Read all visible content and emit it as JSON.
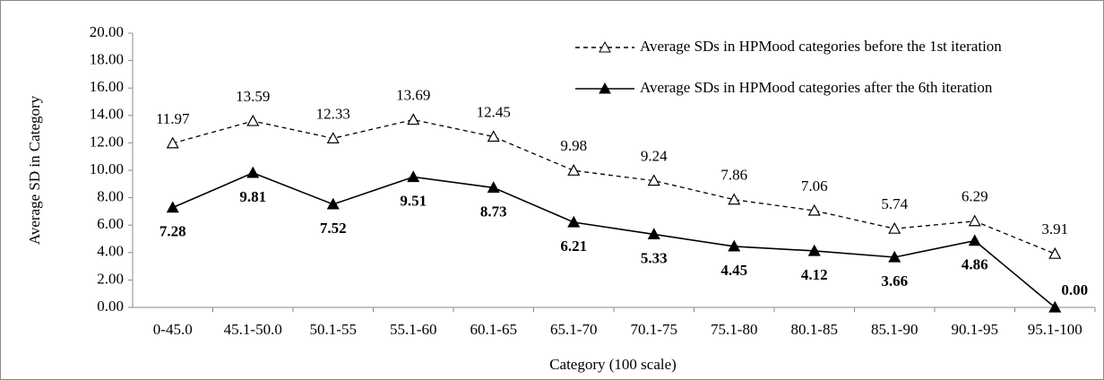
{
  "chart_data": {
    "type": "line",
    "x_label": "Category (100 scale)",
    "y_label": "Average SD in Category",
    "categories": [
      "0-45.0",
      "45.1-50.0",
      "50.1-55",
      "55.1-60",
      "60.1-65",
      "65.1-70",
      "70.1-75",
      "75.1-80",
      "80.1-85",
      "85.1-90",
      "90.1-95",
      "95.1-100"
    ],
    "series": [
      {
        "name": "Average SDs in HPMood categories before the 1st iteration",
        "color": "#000000",
        "dashed": true,
        "marker_filled": false,
        "values": [
          11.97,
          13.59,
          12.33,
          13.69,
          12.45,
          9.98,
          9.24,
          7.86,
          7.06,
          5.74,
          6.29,
          3.91
        ]
      },
      {
        "name": "Average SDs in HPMood categories after the 6th iteration",
        "color": "#000000",
        "dashed": false,
        "marker_filled": true,
        "values": [
          7.28,
          9.81,
          7.52,
          9.51,
          8.73,
          6.21,
          5.33,
          4.45,
          4.12,
          3.66,
          4.86,
          0
        ],
        "value_labels": [
          "7.28",
          "9.81",
          "7.52",
          "9.51",
          "8.73",
          "6.21",
          "5.33",
          "4.45",
          "4.12",
          "3.66",
          "4.86",
          "0.00"
        ]
      }
    ],
    "ylim": [
      0,
      20
    ],
    "yticks": [
      {
        "value": 0,
        "label": "0.00"
      },
      {
        "value": 2,
        "label": "2.00"
      },
      {
        "value": 4,
        "label": "4.00"
      },
      {
        "value": 6,
        "label": "6.00"
      },
      {
        "value": 8,
        "label": "8.00"
      },
      {
        "value": 10,
        "label": "10.00"
      },
      {
        "value": 12,
        "label": "12.00"
      },
      {
        "value": 14,
        "label": "14.00"
      },
      {
        "value": 16,
        "label": "16.00"
      },
      {
        "value": 18,
        "label": "18.00"
      },
      {
        "value": 20,
        "label": "20.00"
      }
    ],
    "grid": false,
    "legend": "top-right"
  }
}
